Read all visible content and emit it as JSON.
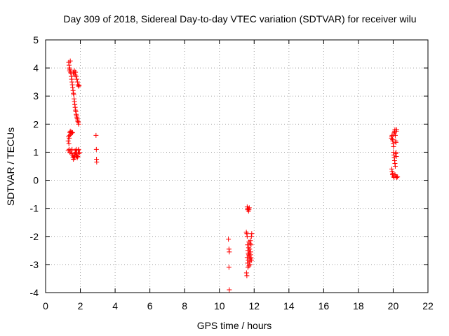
{
  "chart_data": {
    "type": "scatter",
    "title": "Day 309 of 2018, Sidereal Day-to-day VTEC variation (SDTVAR) for receiver wilu",
    "xlabel": "GPS time / hours",
    "ylabel": "SDTVAR / TECUs",
    "xlim": [
      0,
      22
    ],
    "ylim": [
      -4,
      5
    ],
    "grid": true,
    "marker": "+",
    "color": "#ff0000",
    "xticks": [
      "0",
      "2",
      "4",
      "6",
      "8",
      "10",
      "12",
      "14",
      "16",
      "18",
      "20",
      "22"
    ],
    "yticks": [
      "-4",
      "-3",
      "-2",
      "-1",
      "0",
      "1",
      "2",
      "3",
      "4",
      "5"
    ],
    "series": [
      {
        "name": "SDTVAR",
        "points": [
          [
            1.33,
            4.2
          ],
          [
            1.35,
            4.1
          ],
          [
            1.37,
            4.0
          ],
          [
            1.38,
            3.9
          ],
          [
            1.4,
            3.95
          ],
          [
            1.42,
            4.25
          ],
          [
            1.44,
            3.85
          ],
          [
            1.46,
            3.8
          ],
          [
            1.48,
            3.7
          ],
          [
            1.5,
            3.6
          ],
          [
            1.52,
            3.5
          ],
          [
            1.54,
            3.4
          ],
          [
            1.56,
            3.3
          ],
          [
            1.58,
            3.2
          ],
          [
            1.6,
            3.1
          ],
          [
            1.62,
            3.05
          ],
          [
            1.64,
            2.9
          ],
          [
            1.66,
            2.8
          ],
          [
            1.68,
            2.7
          ],
          [
            1.7,
            2.6
          ],
          [
            1.72,
            2.5
          ],
          [
            1.74,
            2.45
          ],
          [
            1.76,
            2.35
          ],
          [
            1.78,
            2.3
          ],
          [
            1.8,
            2.25
          ],
          [
            1.82,
            2.2
          ],
          [
            1.84,
            2.15
          ],
          [
            1.86,
            2.1
          ],
          [
            1.88,
            2.05
          ],
          [
            1.9,
            2.0
          ],
          [
            1.6,
            3.85
          ],
          [
            1.63,
            3.8
          ],
          [
            1.66,
            3.9
          ],
          [
            1.7,
            3.75
          ],
          [
            1.72,
            3.85
          ],
          [
            1.76,
            3.7
          ],
          [
            1.8,
            3.6
          ],
          [
            1.84,
            3.5
          ],
          [
            1.86,
            3.4
          ],
          [
            1.9,
            3.35
          ],
          [
            1.93,
            3.38
          ],
          [
            1.3,
            1.4
          ],
          [
            1.32,
            1.55
          ],
          [
            1.34,
            1.3
          ],
          [
            1.36,
            1.5
          ],
          [
            1.38,
            1.6
          ],
          [
            1.4,
            1.7
          ],
          [
            1.42,
            1.75
          ],
          [
            1.44,
            1.65
          ],
          [
            1.46,
            1.7
          ],
          [
            1.48,
            1.72
          ],
          [
            1.5,
            1.68
          ],
          [
            1.55,
            1.7
          ],
          [
            1.3,
            1.05
          ],
          [
            1.35,
            1.1
          ],
          [
            1.4,
            1.0
          ],
          [
            1.45,
            1.05
          ],
          [
            1.5,
            0.95
          ],
          [
            1.52,
            1.1
          ],
          [
            1.55,
            0.9
          ],
          [
            1.58,
            0.8
          ],
          [
            1.6,
            0.75
          ],
          [
            1.62,
            0.85
          ],
          [
            1.65,
            0.9
          ],
          [
            1.68,
            0.8
          ],
          [
            1.7,
            0.95
          ],
          [
            1.72,
            1.0
          ],
          [
            1.75,
            0.85
          ],
          [
            1.78,
            0.9
          ],
          [
            1.8,
            1.0
          ],
          [
            1.82,
            0.8
          ],
          [
            1.85,
            0.85
          ],
          [
            1.88,
            1.05
          ],
          [
            1.9,
            1.1
          ],
          [
            1.92,
            0.95
          ],
          [
            1.95,
            1.0
          ],
          [
            1.7,
            1.05
          ],
          [
            1.76,
            1.1
          ],
          [
            2.9,
            1.6
          ],
          [
            2.92,
            1.1
          ],
          [
            2.93,
            0.75
          ],
          [
            2.94,
            0.65
          ],
          [
            10.52,
            -2.1
          ],
          [
            10.55,
            -2.45
          ],
          [
            10.57,
            -2.55
          ],
          [
            10.55,
            -3.1
          ],
          [
            10.57,
            -3.9
          ],
          [
            11.6,
            -0.95
          ],
          [
            11.62,
            -1.05
          ],
          [
            11.65,
            -1.0
          ],
          [
            11.68,
            -1.1
          ],
          [
            11.7,
            -1.05
          ],
          [
            11.72,
            -0.98
          ],
          [
            11.55,
            -1.85
          ],
          [
            11.58,
            -1.9
          ],
          [
            11.6,
            -2.0
          ],
          [
            11.62,
            -2.3
          ],
          [
            11.64,
            -2.5
          ],
          [
            11.66,
            -2.6
          ],
          [
            11.68,
            -2.4
          ],
          [
            11.7,
            -2.2
          ],
          [
            11.72,
            -2.7
          ],
          [
            11.74,
            -2.9
          ],
          [
            11.76,
            -3.0
          ],
          [
            11.78,
            -2.8
          ],
          [
            11.8,
            -2.55
          ],
          [
            11.82,
            -2.3
          ],
          [
            11.84,
            -2.0
          ],
          [
            11.86,
            -1.9
          ],
          [
            11.6,
            -2.75
          ],
          [
            11.62,
            -2.95
          ],
          [
            11.64,
            -3.1
          ],
          [
            11.66,
            -2.85
          ],
          [
            11.68,
            -2.65
          ],
          [
            11.7,
            -3.05
          ],
          [
            11.72,
            -2.6
          ],
          [
            11.74,
            -2.45
          ],
          [
            11.76,
            -2.25
          ],
          [
            11.78,
            -2.15
          ],
          [
            11.8,
            -2.65
          ],
          [
            11.82,
            -2.75
          ],
          [
            11.84,
            -2.85
          ],
          [
            11.56,
            -3.3
          ],
          [
            11.58,
            -3.4
          ],
          [
            19.9,
            1.5
          ],
          [
            19.92,
            1.55
          ],
          [
            19.94,
            1.6
          ],
          [
            19.96,
            1.45
          ],
          [
            19.98,
            1.4
          ],
          [
            20.0,
            1.3
          ],
          [
            20.02,
            1.2
          ],
          [
            20.04,
            1.65
          ],
          [
            20.06,
            1.7
          ],
          [
            20.08,
            1.75
          ],
          [
            20.1,
            1.8
          ],
          [
            20.12,
            1.6
          ],
          [
            20.14,
            1.4
          ],
          [
            20.16,
            1.35
          ],
          [
            20.18,
            1.75
          ],
          [
            20.2,
            1.8
          ],
          [
            20.02,
            1.0
          ],
          [
            20.04,
            0.9
          ],
          [
            20.06,
            0.8
          ],
          [
            20.08,
            0.7
          ],
          [
            20.1,
            0.6
          ],
          [
            20.12,
            0.5
          ],
          [
            20.14,
            0.95
          ],
          [
            20.16,
            1.0
          ],
          [
            20.18,
            0.85
          ],
          [
            19.92,
            0.4
          ],
          [
            19.94,
            0.3
          ],
          [
            19.96,
            0.2
          ],
          [
            19.98,
            0.25
          ],
          [
            20.0,
            0.15
          ],
          [
            20.05,
            0.1
          ],
          [
            20.1,
            0.2
          ],
          [
            20.15,
            0.15
          ],
          [
            20.2,
            0.1
          ],
          [
            20.25,
            0.12
          ]
        ]
      }
    ]
  }
}
